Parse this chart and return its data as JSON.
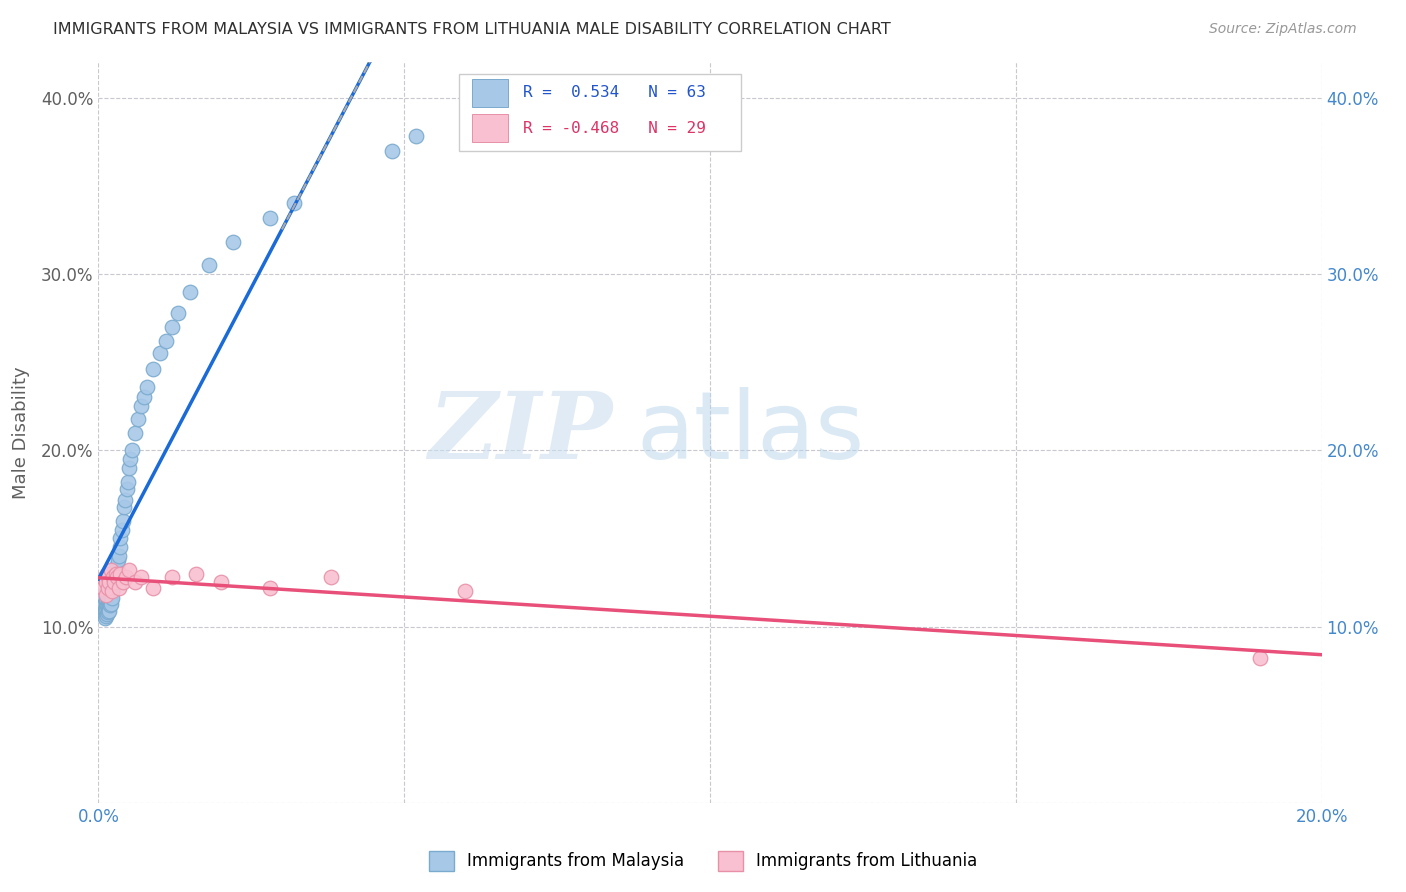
{
  "title": "IMMIGRANTS FROM MALAYSIA VS IMMIGRANTS FROM LITHUANIA MALE DISABILITY CORRELATION CHART",
  "source": "Source: ZipAtlas.com",
  "ylabel": "Male Disability",
  "xlim": [
    0.0,
    0.2
  ],
  "ylim": [
    0.0,
    0.42
  ],
  "xticks": [
    0.0,
    0.05,
    0.1,
    0.15,
    0.2
  ],
  "yticks": [
    0.0,
    0.1,
    0.2,
    0.3,
    0.4
  ],
  "malaysia_color": "#a8c8e8",
  "malaysia_edge": "#7aaace",
  "lithuania_color": "#f8c0d0",
  "lithuania_edge": "#e890a8",
  "line_malaysia": "#1a6ad8",
  "line_lithuania": "#e8507a",
  "R_malaysia": 0.534,
  "N_malaysia": 63,
  "R_lithuania": -0.468,
  "N_lithuania": 29,
  "legend_label_malaysia": "Immigrants from Malaysia",
  "legend_label_lithuania": "Immigrants from Lithuania",
  "watermark_zip": "ZIP",
  "watermark_atlas": "atlas",
  "background_color": "#ffffff",
  "grid_color": "#c8c8d0",
  "title_color": "#303030",
  "axis_label_color": "#606060",
  "tick_color_right": "#4488cc",
  "tick_color_left": "#606060",
  "malaysia_x": [
    0.0008,
    0.0009,
    0.001,
    0.001,
    0.0011,
    0.0012,
    0.0012,
    0.0013,
    0.0013,
    0.0014,
    0.0014,
    0.0015,
    0.0015,
    0.0016,
    0.0016,
    0.0017,
    0.0018,
    0.0018,
    0.0019,
    0.002,
    0.002,
    0.0021,
    0.0021,
    0.0022,
    0.0023,
    0.0023,
    0.0024,
    0.0025,
    0.0026,
    0.0027,
    0.0028,
    0.0029,
    0.003,
    0.0032,
    0.0033,
    0.0035,
    0.0036,
    0.0038,
    0.004,
    0.0042,
    0.0044,
    0.0046,
    0.0048,
    0.005,
    0.0052,
    0.0055,
    0.006,
    0.0065,
    0.007,
    0.0075,
    0.008,
    0.009,
    0.01,
    0.011,
    0.012,
    0.013,
    0.015,
    0.018,
    0.022,
    0.028,
    0.032,
    0.048,
    0.052
  ],
  "malaysia_y": [
    0.118,
    0.112,
    0.11,
    0.105,
    0.108,
    0.113,
    0.106,
    0.115,
    0.109,
    0.112,
    0.107,
    0.114,
    0.11,
    0.116,
    0.108,
    0.113,
    0.115,
    0.109,
    0.112,
    0.12,
    0.115,
    0.118,
    0.113,
    0.12,
    0.122,
    0.116,
    0.124,
    0.126,
    0.128,
    0.13,
    0.128,
    0.132,
    0.135,
    0.138,
    0.14,
    0.145,
    0.15,
    0.155,
    0.16,
    0.168,
    0.172,
    0.178,
    0.182,
    0.19,
    0.195,
    0.2,
    0.21,
    0.218,
    0.225,
    0.23,
    0.236,
    0.246,
    0.255,
    0.262,
    0.27,
    0.278,
    0.29,
    0.305,
    0.318,
    0.332,
    0.34,
    0.37,
    0.378
  ],
  "lithuania_x": [
    0.0008,
    0.001,
    0.0012,
    0.0013,
    0.0014,
    0.0015,
    0.0016,
    0.0018,
    0.002,
    0.0022,
    0.0024,
    0.0026,
    0.0028,
    0.003,
    0.0033,
    0.0036,
    0.004,
    0.0045,
    0.005,
    0.006,
    0.007,
    0.009,
    0.012,
    0.016,
    0.02,
    0.028,
    0.038,
    0.06,
    0.19
  ],
  "lithuania_y": [
    0.122,
    0.128,
    0.118,
    0.125,
    0.13,
    0.122,
    0.128,
    0.125,
    0.132,
    0.12,
    0.128,
    0.125,
    0.13,
    0.128,
    0.122,
    0.13,
    0.125,
    0.128,
    0.132,
    0.125,
    0.128,
    0.122,
    0.128,
    0.13,
    0.125,
    0.122,
    0.128,
    0.12,
    0.082
  ]
}
